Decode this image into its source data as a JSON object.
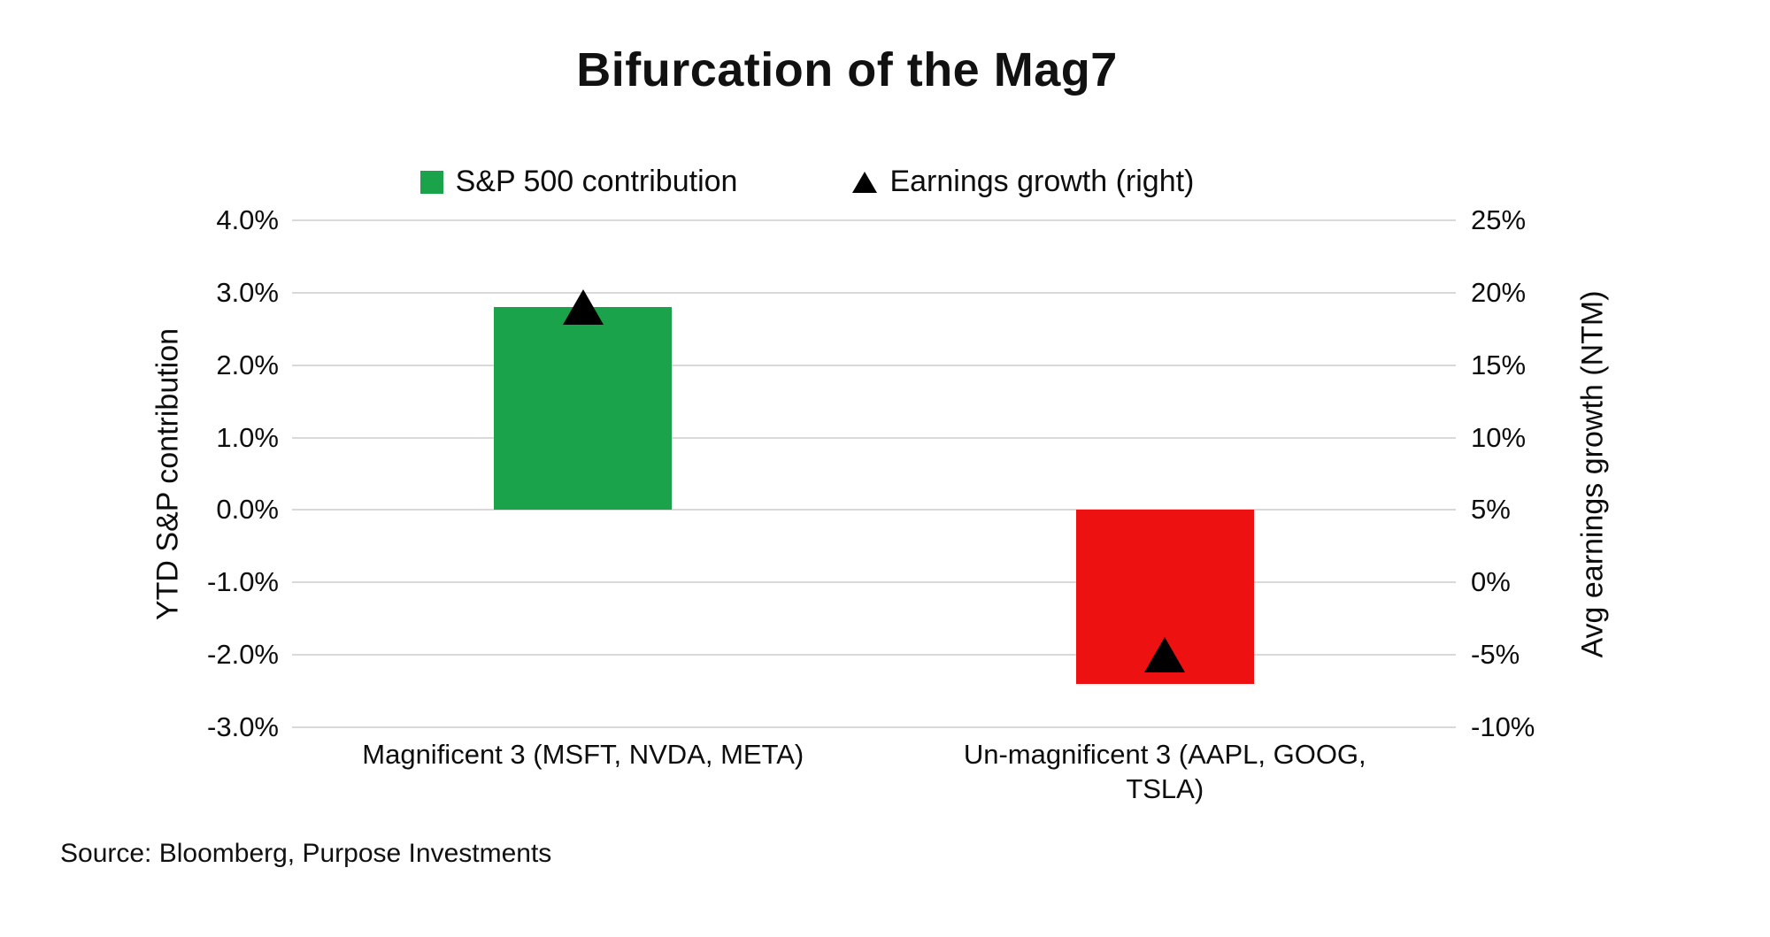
{
  "page": {
    "background": "#ffffff"
  },
  "chart_data": {
    "type": "bar",
    "title": "Bifurcation of the Mag7",
    "categories": [
      "Magnificent 3 (MSFT, NVDA, META)",
      "Un-magnificent 3 (AAPL, GOOG, TSLA)"
    ],
    "series": [
      {
        "name": "S&P 500 contribution",
        "type": "bar",
        "axis": "left",
        "values": [
          2.8,
          -2.4
        ],
        "point_colors": [
          "#1aa34b",
          "#ee1111"
        ],
        "legend_color": "#1aa34b"
      },
      {
        "name": "Earnings growth (right)",
        "type": "triangle-marker",
        "axis": "right",
        "values": [
          19,
          -5
        ],
        "color": "#000000"
      }
    ],
    "left_axis": {
      "title": "YTD S&P contribution",
      "min": -3,
      "max": 4,
      "ticks": [
        {
          "value": 4.0,
          "label": "4.0%"
        },
        {
          "value": 3.0,
          "label": "3.0%"
        },
        {
          "value": 2.0,
          "label": "2.0%"
        },
        {
          "value": 1.0,
          "label": "1.0%"
        },
        {
          "value": 0.0,
          "label": "0.0%"
        },
        {
          "value": -1.0,
          "label": "-1.0%"
        },
        {
          "value": -2.0,
          "label": "-2.0%"
        },
        {
          "value": -3.0,
          "label": "-3.0%"
        }
      ]
    },
    "right_axis": {
      "title": "Avg earnings growth (NTM)",
      "min": -10,
      "max": 25,
      "ticks": [
        {
          "value": 25,
          "label": "25%"
        },
        {
          "value": 20,
          "label": "20%"
        },
        {
          "value": 15,
          "label": "15%"
        },
        {
          "value": 10,
          "label": "10%"
        },
        {
          "value": 5,
          "label": "5%"
        },
        {
          "value": 0,
          "label": "0%"
        },
        {
          "value": -5,
          "label": "-5%"
        },
        {
          "value": -10,
          "label": "-10%"
        }
      ]
    },
    "grid": true,
    "gridline_color": "#d9d9d9",
    "legend_position": "top",
    "bar_width_frac": 0.153
  },
  "source": "Source: Bloomberg, Purpose Investments"
}
